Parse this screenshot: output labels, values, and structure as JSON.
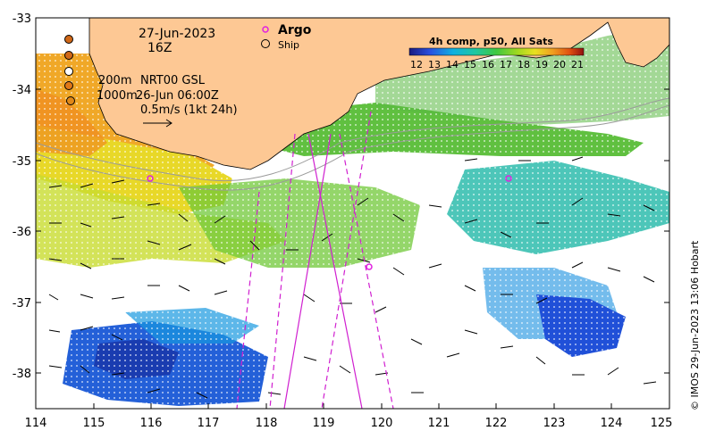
{
  "map": {
    "date": "27-Jun-2023",
    "time": "16Z",
    "legend_argo": "Argo",
    "legend_ship": "Ship",
    "depth_200": "200m",
    "depth_1000": "1000m",
    "altimetry": "NRT00 GSL",
    "altimetry_date": "26-Jun 06:00Z",
    "arrow_scale": "0.5m/s (1kt 24h)",
    "colorbar_title": "4h comp, p50, All Sats",
    "colorbar_ticks": [
      "12",
      "13",
      "14",
      "15",
      "16",
      "17",
      "18",
      "19",
      "20",
      "21"
    ],
    "x_ticks": [
      "114",
      "115",
      "116",
      "117",
      "118",
      "119",
      "120",
      "121",
      "122",
      "123",
      "124",
      "125"
    ],
    "y_ticks": [
      "-33",
      "-34",
      "-35",
      "-36",
      "-37",
      "-38"
    ],
    "credit": "© IMOS 29-Jun-2023 13:06 Hobart",
    "colors": {
      "land": "#fdc894",
      "argo": "#e020e0",
      "track": "#d020d0",
      "frame": "#000000"
    }
  }
}
